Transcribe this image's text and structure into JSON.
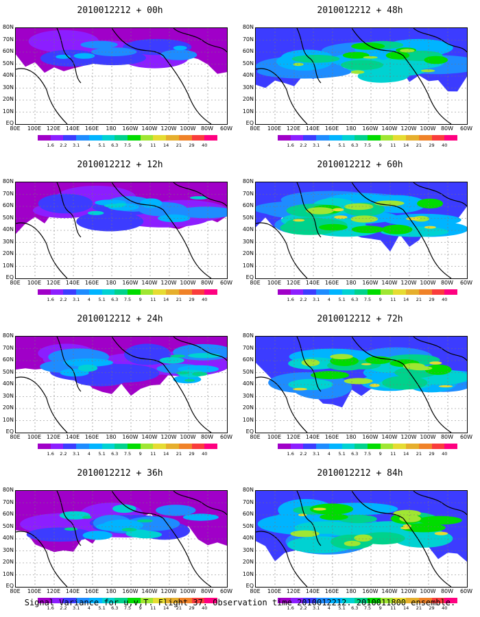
{
  "panels": [
    {
      "title": "2010012212 + 00h",
      "coverage": 0.35
    },
    {
      "title": "2010012212 + 48h",
      "coverage": 0.85
    },
    {
      "title": "2010012212 + 12h",
      "coverage": 0.5
    },
    {
      "title": "2010012212 + 60h",
      "coverage": 0.9
    },
    {
      "title": "2010012212 + 24h",
      "coverage": 0.65
    },
    {
      "title": "2010012212 + 72h",
      "coverage": 0.95
    },
    {
      "title": "2010012212 + 36h",
      "coverage": 0.75
    },
    {
      "title": "2010012212 + 84h",
      "coverage": 1.0
    }
  ],
  "lat_labels": [
    "80N",
    "70N",
    "60N",
    "50N",
    "40N",
    "30N",
    "20N",
    "10N",
    "EQ"
  ],
  "lon_labels": [
    "80E",
    "100E",
    "120E",
    "140E",
    "160E",
    "180",
    "160W",
    "140W",
    "120W",
    "100W",
    "80W",
    "60W"
  ],
  "colorbar": {
    "colors": [
      "#a000c8",
      "#8c1eff",
      "#3c3cff",
      "#1e8cff",
      "#00b4ff",
      "#00d2d2",
      "#00d28c",
      "#00dc00",
      "#a0e632",
      "#e6dc32",
      "#e6af2d",
      "#f08228",
      "#fa3c3c",
      "#ff0080"
    ],
    "labels": [
      "1.6",
      "2.2",
      "3.1",
      "4",
      "5.1",
      "6.3",
      "7.5",
      "9",
      "11",
      "14",
      "21",
      "29",
      "40"
    ]
  },
  "footer": "Signal Variance for u,v,T. Flight 37. Observation time 2010012212. 2010011800 ensemble."
}
